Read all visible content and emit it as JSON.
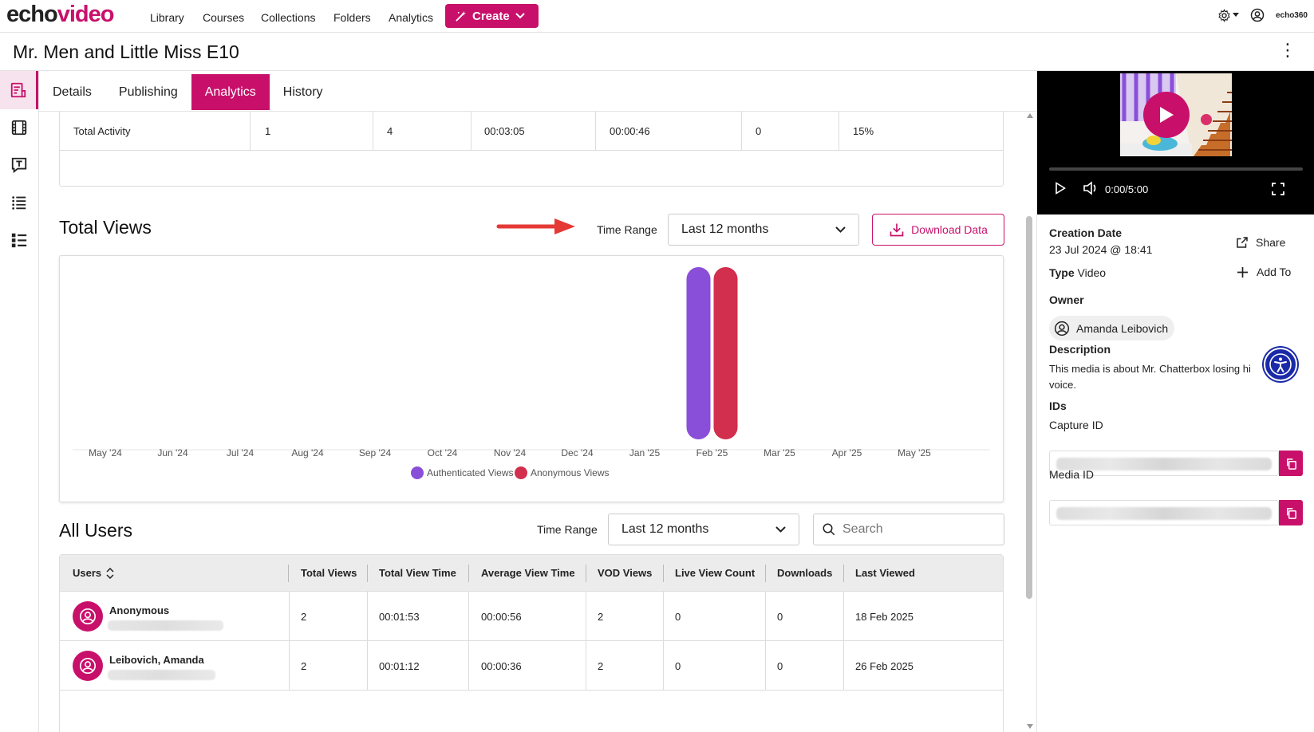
{
  "nav": {
    "logo_echo": "echo",
    "logo_video": "video",
    "links": [
      "Library",
      "Courses",
      "Collections",
      "Folders",
      "Analytics"
    ],
    "create_label": "Create",
    "brand_small": "echo360"
  },
  "page": {
    "title": "Mr. Men and Little Miss E10"
  },
  "tabs": [
    "Details",
    "Publishing",
    "Analytics",
    "History"
  ],
  "activity": {
    "row_label": "Total Activity",
    "values": [
      "1",
      "4",
      "00:03:05",
      "00:00:46",
      "0",
      "15%"
    ]
  },
  "total_views": {
    "title": "Total Views",
    "time_range_label": "Time Range",
    "time_range_value": "Last 12 months",
    "download_label": "Download Data"
  },
  "chart_data": {
    "type": "bar",
    "categories": [
      "May '24",
      "Jun '24",
      "Jul '24",
      "Aug '24",
      "Sep '24",
      "Oct '24",
      "Nov '24",
      "Dec '24",
      "Jan '25",
      "Feb '25",
      "Mar '25",
      "Apr '25",
      "May '25"
    ],
    "series": [
      {
        "name": "Authenticated Views",
        "color": "#8a4fd9",
        "values": [
          0,
          0,
          0,
          0,
          0,
          0,
          0,
          0,
          0,
          2,
          0,
          0,
          0
        ]
      },
      {
        "name": "Anonymous Views",
        "color": "#d22e4d",
        "values": [
          0,
          0,
          0,
          0,
          0,
          0,
          0,
          0,
          0,
          2,
          0,
          0,
          0
        ]
      }
    ],
    "ylim": [
      0,
      2
    ],
    "legend": "bottom"
  },
  "all_users": {
    "title": "All Users",
    "time_range_label": "Time Range",
    "time_range_value": "Last 12 months",
    "search_placeholder": "Search",
    "columns": [
      "Users",
      "Total Views",
      "Total View Time",
      "Average View Time",
      "VOD Views",
      "Live View Count",
      "Downloads",
      "Last Viewed"
    ],
    "rows": [
      {
        "name": "Anonymous",
        "values": [
          "2",
          "00:01:53",
          "00:00:56",
          "2",
          "0",
          "0",
          "18 Feb 2025"
        ]
      },
      {
        "name": "Leibovich, Amanda",
        "values": [
          "2",
          "00:01:12",
          "00:00:36",
          "2",
          "0",
          "0",
          "26 Feb 2025"
        ]
      }
    ]
  },
  "player": {
    "time": "0:00/5:00",
    "progress": 0
  },
  "details": {
    "creation_label": "Creation Date",
    "creation_value": "23 Jul 2024 @ 18:41",
    "share_label": "Share",
    "type_label": "Type",
    "type_value": "Video",
    "addto_label": "Add To",
    "owner_label": "Owner",
    "owner_value": "Amanda Leibovich",
    "description_label": "Description",
    "description_line1": "This media is about Mr. Chatterbox losing hi",
    "description_line2": "voice.",
    "ids_label": "IDs",
    "capture_label": "Capture ID",
    "media_label": "Media ID"
  },
  "colors": {
    "accent": "#c8106b",
    "arrow": "#e53935"
  }
}
